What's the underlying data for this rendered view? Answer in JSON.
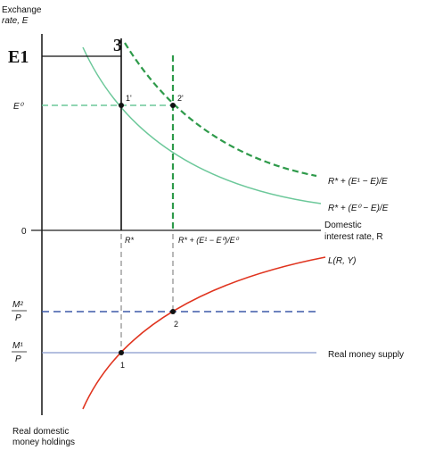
{
  "labels": {
    "y_axis_top_line1": "Exchange",
    "y_axis_top_line2": "rate, E",
    "y_axis_bottom_line1": "Real domestic",
    "y_axis_bottom_line2": "money holdings",
    "x_axis_line1": "Domestic",
    "x_axis_line2": "interest rate, R",
    "origin": "0",
    "e1_handwritten": "E1",
    "point3_handwritten": "3",
    "e0": "E⁰",
    "m2": "M²",
    "m1": "M¹",
    "p": "P",
    "r_star": "R*",
    "r_new": "R* + (E¹ − E⁰)/E⁰",
    "curve_e1": "R* + (E¹ − E)/E",
    "curve_e0": "R* + (E⁰ − E)/E",
    "money_demand": "L(R, Y)",
    "money_supply": "Real money supply",
    "pt_1prime": "1'",
    "pt_2prime": "2'",
    "pt_1": "1",
    "pt_2": "2"
  },
  "colors": {
    "axis": "#222222",
    "curve_green": "#6cc89a",
    "curve_green_dashed": "#2e9a4a",
    "demand_red": "#e0341f",
    "supply_blue": "#8899cc",
    "dashed_blue": "#3d5aa8",
    "dashed_gray": "#8a8a8a",
    "point": "#111111"
  }
}
